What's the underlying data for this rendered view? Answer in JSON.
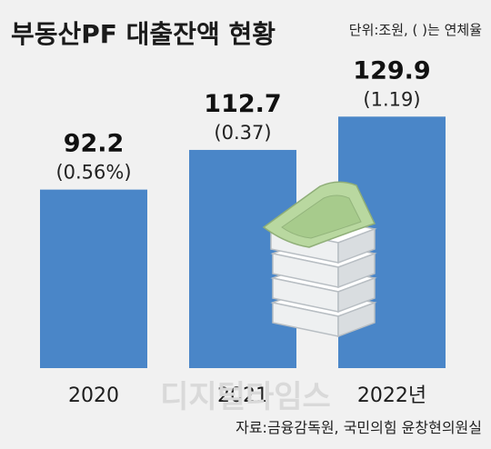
{
  "header": {
    "title": "부동산PF 대출잔액 현황",
    "unit_note": "단위:조원, ( )는 연체율"
  },
  "chart_data": {
    "type": "bar",
    "categories": [
      "2020",
      "2021",
      "2022년"
    ],
    "values": [
      92.2,
      112.7,
      129.9
    ],
    "value_labels": [
      "92.2",
      "112.7",
      "129.9"
    ],
    "delinquency_labels": [
      "(0.56%)",
      "(0.37)",
      "(1.19)"
    ],
    "delinquency_rates": [
      0.56,
      0.37,
      1.19
    ],
    "bar_color": "#4a86c8",
    "grid": false,
    "legend": "none"
  },
  "footer": {
    "source": "자료:금융감독원, 국민의힘 윤창현의원실",
    "watermark": "디지털타임스"
  },
  "colors": {
    "background": "#f1f1f1",
    "bar": "#4a86c8",
    "money_green": "#b9d8a0"
  },
  "icons": [
    "money-stack-icon"
  ]
}
